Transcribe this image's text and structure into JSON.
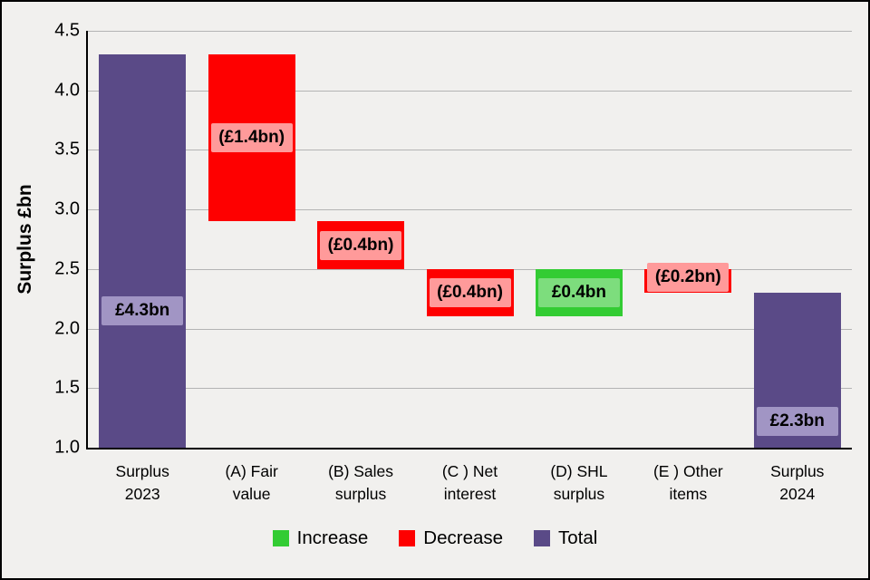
{
  "chart_data": {
    "type": "waterfall",
    "title": "",
    "ylabel": "Surplus £bn",
    "xlabel": "",
    "ylim": [
      1.0,
      4.5
    ],
    "ytick_step": 0.5,
    "yticks": [
      "1.0",
      "1.5",
      "2.0",
      "2.5",
      "3.0",
      "3.5",
      "4.0",
      "4.5"
    ],
    "grid": true,
    "legend_position": "bottom",
    "colors": {
      "increase": "#33cc33",
      "decrease": "#fe0000",
      "total": "#5a4a87"
    },
    "chip_colors": {
      "increase": "#7ddd7d",
      "decrease": "#ff9a9a",
      "total": "#a195c4"
    },
    "categories": [
      "Surplus 2023",
      "(A) Fair value",
      "(B) Sales surplus",
      "(C ) Net interest",
      "(D) SHL surplus",
      "(E ) Other items",
      "Surplus 2024"
    ],
    "bars": [
      {
        "category_lines": [
          "Surplus",
          "2023"
        ],
        "kind": "total",
        "start": 1.0,
        "end": 4.3,
        "value": 4.3,
        "value_label": "£4.3bn",
        "label_at": 2.15
      },
      {
        "category_lines": [
          "(A) Fair",
          "value"
        ],
        "kind": "decrease",
        "start": 4.3,
        "end": 2.9,
        "value": -1.4,
        "value_label": "(£1.4bn)",
        "label_at": 3.6
      },
      {
        "category_lines": [
          "(B) Sales",
          "surplus"
        ],
        "kind": "decrease",
        "start": 2.9,
        "end": 2.5,
        "value": -0.4,
        "value_label": "(£0.4bn)",
        "label_at": 2.7
      },
      {
        "category_lines": [
          "(C ) Net",
          "interest"
        ],
        "kind": "decrease",
        "start": 2.5,
        "end": 2.1,
        "value": -0.4,
        "value_label": "(£0.4bn)",
        "label_at": 2.3
      },
      {
        "category_lines": [
          "(D) SHL",
          "surplus"
        ],
        "kind": "increase",
        "start": 2.1,
        "end": 2.5,
        "value": 0.4,
        "value_label": "£0.4bn",
        "label_at": 2.3
      },
      {
        "category_lines": [
          "(E ) Other",
          "items"
        ],
        "kind": "decrease",
        "start": 2.5,
        "end": 2.3,
        "value": -0.2,
        "value_label": "(£0.2bn)",
        "label_at": 2.43
      },
      {
        "category_lines": [
          "Surplus",
          "2024"
        ],
        "kind": "total",
        "start": 1.0,
        "end": 2.3,
        "value": 2.3,
        "value_label": "£2.3bn",
        "label_at": 1.22
      }
    ],
    "legend": [
      {
        "label": "Increase",
        "kind": "increase"
      },
      {
        "label": "Decrease",
        "kind": "decrease"
      },
      {
        "label": "Total",
        "kind": "total"
      }
    ]
  }
}
